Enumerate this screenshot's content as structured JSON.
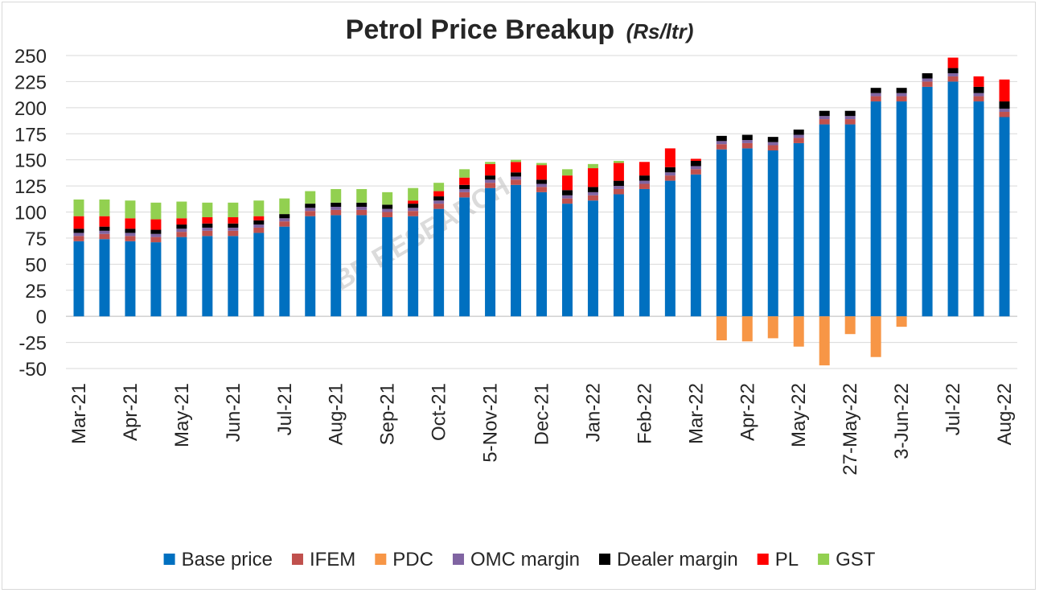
{
  "chart_data": {
    "type": "bar",
    "stacked": true,
    "title": "Petrol Price Breakup",
    "subtitle": "(Rs/ltr)",
    "watermark": "BF RESEARCH",
    "ylim": [
      -50,
      250
    ],
    "yticks": [
      250,
      225,
      200,
      175,
      150,
      125,
      100,
      75,
      50,
      25,
      0,
      -25,
      -50
    ],
    "grid": "horizontal",
    "legend_position": "bottom",
    "category_labels": [
      "Mar-21",
      "Apr-21",
      "May-21",
      "Jun-21",
      "Jul-21",
      "Aug-21",
      "Sep-21",
      "Oct-21",
      "5-Nov-21",
      "Dec-21",
      "Jan-22",
      "Feb-22",
      "Mar-22",
      "Apr-22",
      "May-22",
      "27-May-22",
      "3-Jun-22",
      "Jul-22",
      "Aug-22"
    ],
    "series": [
      {
        "name": "Base price",
        "color": "#0070C0",
        "values": [
          72,
          74,
          72,
          71,
          76,
          77,
          77,
          80,
          86,
          96,
          97,
          97,
          95,
          96,
          103,
          114,
          123,
          126,
          119,
          108,
          111,
          117,
          122,
          130,
          136,
          160,
          161,
          159,
          166,
          184,
          184,
          206,
          206,
          220,
          225,
          206,
          191
        ]
      },
      {
        "name": "IFEM",
        "color": "#C0504D",
        "values": [
          5,
          5,
          5,
          5,
          5,
          5,
          5,
          5,
          5,
          5,
          5,
          5,
          5,
          5,
          5,
          5,
          5,
          5,
          5,
          5,
          5,
          5,
          5,
          5,
          5,
          5,
          5,
          5,
          5,
          5,
          5,
          5,
          5,
          5,
          5,
          5,
          5
        ]
      },
      {
        "name": "PDC",
        "color": "#F79646",
        "values": [
          0,
          0,
          0,
          0,
          0,
          0,
          0,
          0,
          0,
          0,
          0,
          0,
          0,
          0,
          0,
          0,
          0,
          0,
          0,
          0,
          0,
          0,
          0,
          0,
          0,
          -23,
          -24,
          -21,
          -29,
          -47,
          -17,
          -39,
          -10,
          0,
          0,
          0,
          0
        ]
      },
      {
        "name": "OMC margin",
        "color": "#8064A2",
        "values": [
          3,
          3,
          3,
          3,
          3,
          3,
          3,
          3,
          3,
          3,
          3,
          3,
          3,
          3,
          3,
          3,
          3,
          3,
          3,
          3,
          3,
          3,
          3,
          3,
          3,
          3,
          3,
          3,
          3,
          3,
          3,
          3,
          3,
          3,
          3,
          3,
          3
        ]
      },
      {
        "name": "Dealer margin",
        "color": "#000000",
        "values": [
          4,
          4,
          4,
          4,
          4,
          4,
          4,
          4,
          4,
          4,
          4,
          4,
          4,
          4,
          4,
          4,
          4,
          4,
          4,
          5,
          5,
          5,
          5,
          5,
          5,
          5,
          5,
          5,
          5,
          5,
          5,
          5,
          5,
          5,
          5,
          6,
          7
        ]
      },
      {
        "name": "PL",
        "color": "#FF0000",
        "values": [
          12,
          10,
          10,
          10,
          6,
          6,
          6,
          4,
          0,
          0,
          0,
          0,
          0,
          3,
          5,
          7,
          11,
          10,
          14,
          14,
          18,
          17,
          13,
          18,
          2,
          0,
          0,
          0,
          0,
          0,
          0,
          0,
          0,
          0,
          10,
          10,
          21
        ]
      },
      {
        "name": "GST",
        "color": "#92D050",
        "values": [
          16,
          16,
          17,
          16,
          16,
          14,
          14,
          15,
          15,
          12,
          13,
          13,
          12,
          12,
          8,
          8,
          2,
          2,
          2,
          6,
          4,
          2,
          0,
          0,
          0,
          0,
          0,
          0,
          0,
          0,
          0,
          0,
          0,
          0,
          0,
          0,
          0
        ]
      }
    ]
  }
}
